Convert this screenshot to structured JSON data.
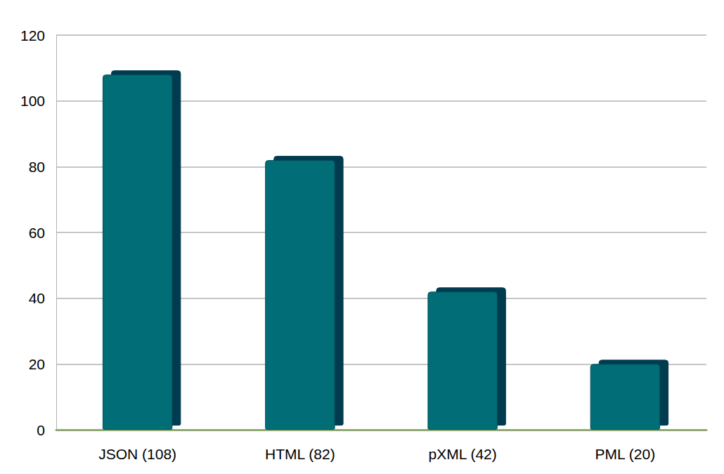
{
  "chart_data": {
    "type": "bar",
    "categories": [
      "JSON (108)",
      "HTML (82)",
      "pXML (42)",
      "PML (20)"
    ],
    "values": [
      108,
      82,
      42,
      20
    ],
    "color": "#006d77",
    "ylim": [
      0,
      120
    ],
    "yticks": [
      0,
      20,
      40,
      60,
      80,
      100,
      120
    ],
    "grid": true
  }
}
